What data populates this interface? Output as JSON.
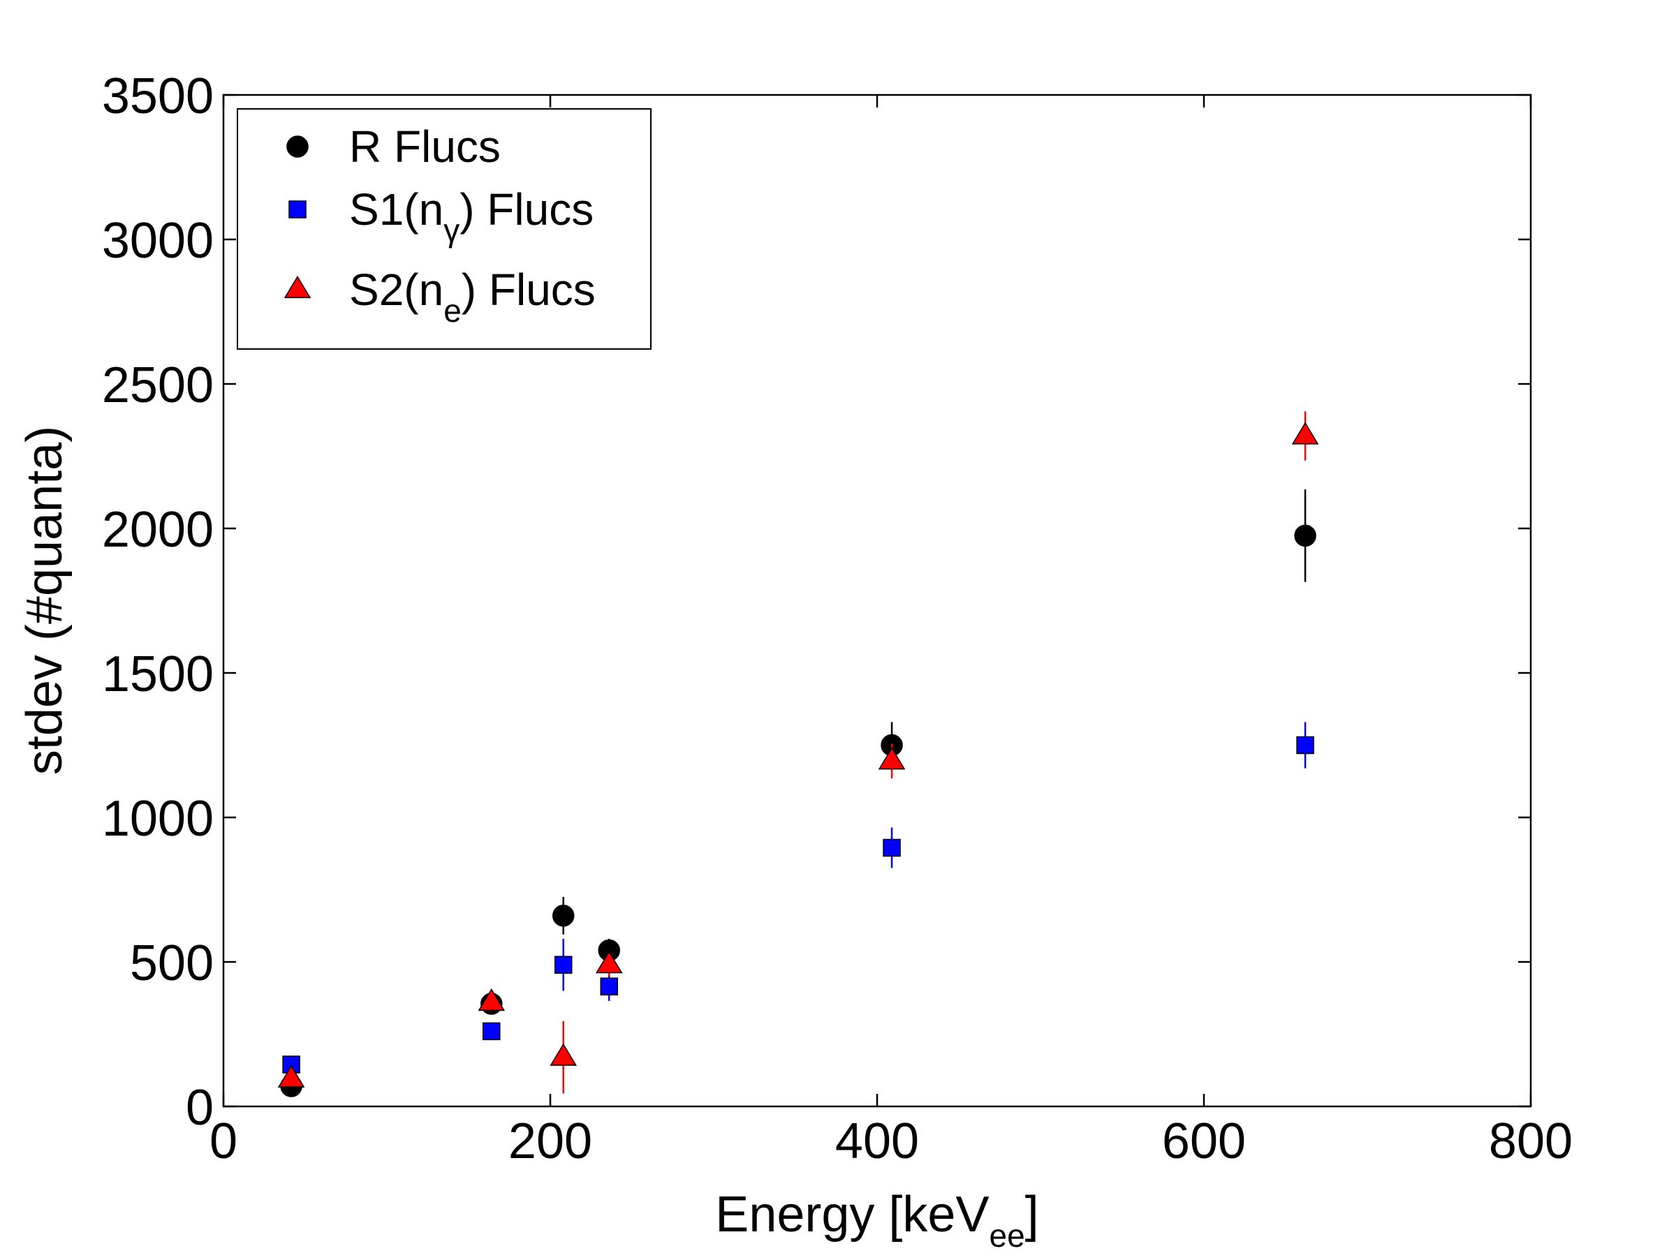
{
  "chart_data": {
    "type": "scatter",
    "xlabel": {
      "main": "Energy [keV",
      "sub": "ee",
      "end": "]"
    },
    "ylabel": "stdev (#quanta)",
    "xlim": [
      0,
      800
    ],
    "ylim": [
      0,
      3500
    ],
    "xticks": [
      "0",
      "200",
      "400",
      "600",
      "800"
    ],
    "yticks": [
      "0",
      "500",
      "1000",
      "1500",
      "2000",
      "2500",
      "3000",
      "3500"
    ],
    "grid": false,
    "legend_position": "top-left",
    "series": [
      {
        "name": "R Flucs",
        "legend": {
          "main": "R Flucs",
          "sub": "",
          "end": ""
        },
        "marker": "circle",
        "color": "#000000",
        "points": [
          {
            "x": 41.5,
            "y": 70,
            "err": 20
          },
          {
            "x": 164,
            "y": 355,
            "err": 30
          },
          {
            "x": 208,
            "y": 660,
            "err": 65
          },
          {
            "x": 236,
            "y": 540,
            "err": 40
          },
          {
            "x": 409,
            "y": 1250,
            "err": 80
          },
          {
            "x": 662,
            "y": 1975,
            "err": 160
          }
        ]
      },
      {
        "name": "S1(nγ) Flucs",
        "legend": {
          "main": "S1(n",
          "sub": "γ",
          "end": ") Flucs"
        },
        "marker": "square",
        "color": "#0000ff",
        "points": [
          {
            "x": 41.5,
            "y": 145,
            "err": 20
          },
          {
            "x": 164,
            "y": 260,
            "err": 20
          },
          {
            "x": 208,
            "y": 490,
            "err": 90
          },
          {
            "x": 236,
            "y": 415,
            "err": 50
          },
          {
            "x": 409,
            "y": 895,
            "err": 70
          },
          {
            "x": 662,
            "y": 1250,
            "err": 80
          }
        ]
      },
      {
        "name": "S2(ne) Flucs",
        "legend": {
          "main": "S2(n",
          "sub": "e",
          "end": ") Flucs"
        },
        "marker": "triangle",
        "color": "#ff0000",
        "points": [
          {
            "x": 41.5,
            "y": 95,
            "err": 20
          },
          {
            "x": 164,
            "y": 360,
            "err": 30
          },
          {
            "x": 208,
            "y": 170,
            "err": 125
          },
          {
            "x": 236,
            "y": 490,
            "err": 40
          },
          {
            "x": 409,
            "y": 1195,
            "err": 60
          },
          {
            "x": 662,
            "y": 2320,
            "err": 85
          }
        ]
      }
    ]
  }
}
